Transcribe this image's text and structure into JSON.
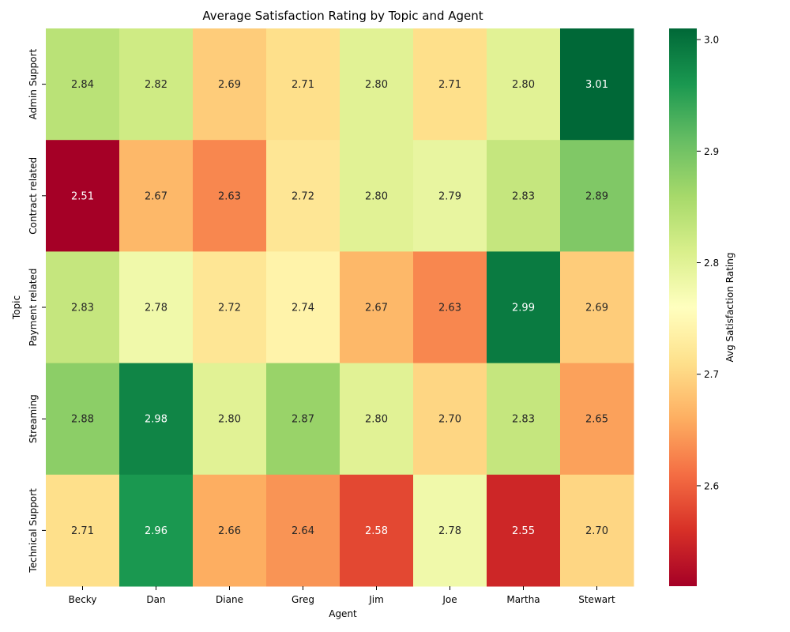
{
  "chart_data": {
    "type": "heatmap",
    "title": "Average Satisfaction Rating by Topic and Agent",
    "xlabel": "Agent",
    "ylabel": "Topic",
    "x": [
      "Becky",
      "Dan",
      "Diane",
      "Greg",
      "Jim",
      "Joe",
      "Martha",
      "Stewart"
    ],
    "y": [
      "Admin Support",
      "Contract related",
      "Payment related",
      "Streaming",
      "Technical Support"
    ],
    "values": [
      [
        2.84,
        2.82,
        2.69,
        2.71,
        2.8,
        2.71,
        2.8,
        3.01
      ],
      [
        2.51,
        2.67,
        2.63,
        2.72,
        2.8,
        2.79,
        2.83,
        2.89
      ],
      [
        2.83,
        2.78,
        2.72,
        2.74,
        2.67,
        2.63,
        2.99,
        2.69
      ],
      [
        2.88,
        2.98,
        2.8,
        2.87,
        2.8,
        2.7,
        2.83,
        2.65
      ],
      [
        2.71,
        2.96,
        2.66,
        2.64,
        2.58,
        2.78,
        2.55,
        2.7
      ]
    ],
    "colorbar": {
      "label": "Avg Satisfaction Rating",
      "min": 2.51,
      "max": 3.01,
      "ticks": [
        "2.6",
        "2.7",
        "2.8",
        "2.9",
        "3.0"
      ],
      "colormap": "RdYlGn"
    },
    "value_format": "2 decimals"
  }
}
